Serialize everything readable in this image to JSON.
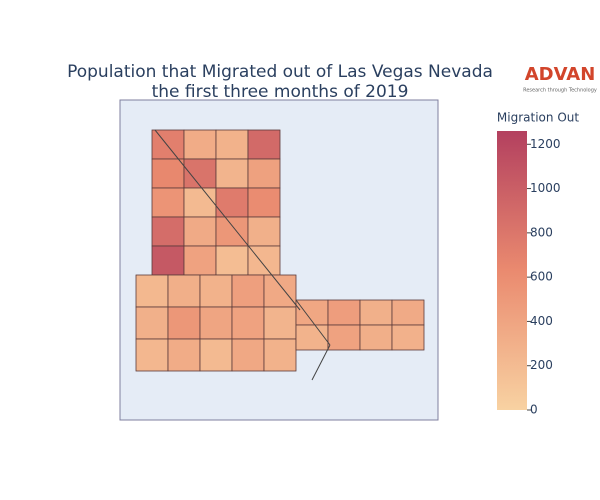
{
  "chart_data": {
    "type": "choropleth",
    "title": [
      "Population that Migrated out of Las Vegas Nevada",
      "the first three months of 2019"
    ],
    "logo": {
      "name": "ADVAN",
      "tagline": "Research through Technology"
    },
    "colorbar_title": "Migration Out",
    "clim": [
      0,
      1260
    ],
    "colorbar_ticks": [
      0,
      200,
      400,
      600,
      800,
      1000,
      1200
    ],
    "colorscale": [
      [
        0,
        "#f8d2a2"
      ],
      [
        0.5,
        "#ea8a6f"
      ],
      [
        1,
        "#b3405f"
      ]
    ],
    "values": [
      720,
      330,
      280,
      900,
      650,
      820,
      260,
      430,
      540,
      210,
      760,
      610,
      880,
      350,
      520,
      300,
      1050,
      420,
      180,
      240,
      230,
      310,
      280,
      450,
      360,
      300,
      520,
      390,
      420,
      260,
      240,
      330,
      210,
      370,
      280,
      380,
      460,
      300,
      350,
      270,
      420,
      310,
      290
    ]
  }
}
